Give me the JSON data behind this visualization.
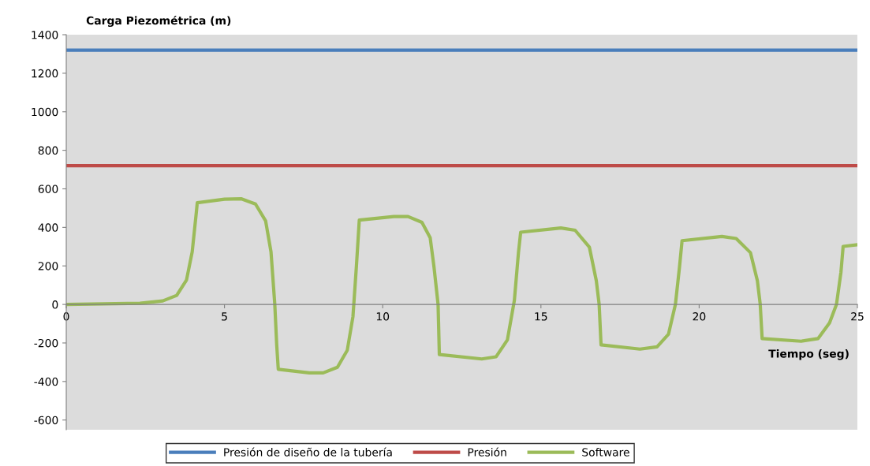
{
  "chart_data": {
    "type": "line",
    "ylabel": "Carga Piezométrica (m)",
    "xlabel": "Tiempo (seg)",
    "xlim": [
      0,
      25
    ],
    "xticks": [
      0,
      5,
      10,
      15,
      20,
      25
    ],
    "ylim": [
      -650,
      1400
    ],
    "yticks": [
      -600,
      -400,
      -200,
      0,
      200,
      400,
      600,
      800,
      1000,
      1200,
      1400
    ],
    "grid": false,
    "legend": "bottom",
    "marker": "none",
    "line_style": "solid",
    "series": [
      {
        "name": "Presión de diseño de la tubería",
        "color": "#4a7ebb",
        "x": [
          0,
          25
        ],
        "values": [
          1320,
          1320
        ]
      },
      {
        "name": "Presión",
        "color": "#be4b48",
        "x": [
          0,
          25
        ],
        "values": [
          720,
          720
        ]
      },
      {
        "name": "Software",
        "color": "#9bbb59",
        "x": [
          0,
          2.33,
          3.05,
          3.49,
          3.8,
          3.98,
          4.11,
          4.14,
          5.0,
          5.54,
          5.98,
          6.3,
          6.47,
          6.59,
          6.65,
          6.7,
          7.68,
          8.12,
          8.57,
          8.88,
          9.06,
          9.17,
          9.26,
          10.35,
          10.8,
          11.24,
          11.5,
          11.62,
          11.75,
          11.79,
          13.13,
          13.58,
          13.94,
          14.16,
          14.29,
          14.36,
          15.63,
          16.08,
          16.53,
          16.75,
          16.84,
          16.9,
          18.13,
          18.67,
          19.03,
          19.25,
          19.38,
          19.46,
          20.72,
          21.17,
          21.62,
          21.84,
          21.93,
          21.99,
          23.22,
          23.76,
          24.12,
          24.34,
          24.48,
          24.55,
          24.99
        ],
        "values": [
          0,
          6,
          18,
          47,
          127,
          273,
          477,
          528,
          546,
          548,
          521,
          434,
          273,
          0,
          -209,
          -337,
          -355,
          -355,
          -326,
          -238,
          -63,
          200,
          438,
          456,
          456,
          426,
          346,
          196,
          0,
          -260,
          -283,
          -272,
          -184,
          20,
          269,
          375,
          397,
          385,
          298,
          123,
          0,
          -210,
          -232,
          -220,
          -155,
          0,
          196,
          331,
          353,
          342,
          269,
          123,
          0,
          -177,
          -191,
          -177,
          -96,
          0,
          166,
          301,
          310
        ]
      }
    ]
  }
}
